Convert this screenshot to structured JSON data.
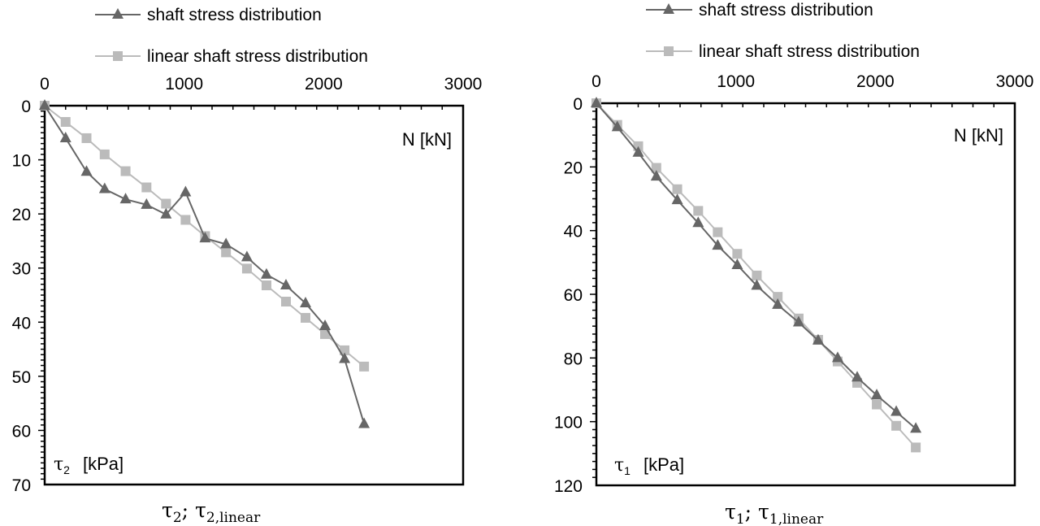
{
  "chart_data": [
    {
      "type": "line",
      "orientation": "inverted-y-depth",
      "x_axis_label": "N [kN]",
      "x_axis_position": "top",
      "y_unit_label": "[kPa]",
      "y_unit_symbol": "τ",
      "y_unit_sub": "2",
      "bottom_label": {
        "sym1": "τ",
        "sub1": "2",
        "sep": "; ",
        "sym2": "τ",
        "sub2": "2,linear"
      },
      "xlim": [
        0,
        3000
      ],
      "ylim": [
        0,
        70
      ],
      "x_ticks": [
        0,
        1000,
        2000,
        3000
      ],
      "x_tick_labels": [
        "0",
        "1000",
        "2000",
        "3000"
      ],
      "y_ticks": [
        0,
        10,
        20,
        30,
        40,
        50,
        60,
        70
      ],
      "y_tick_labels": [
        "0",
        "10",
        "20",
        "30",
        "40",
        "50",
        "60",
        "70"
      ],
      "legend_position": "top-left",
      "series": [
        {
          "name": "shaft stress distribution",
          "color": "#666666",
          "marker": "triangle",
          "x": [
            0,
            150,
            300,
            430,
            580,
            730,
            870,
            1010,
            1150,
            1300,
            1450,
            1590,
            1730,
            1870,
            2010,
            2150,
            2290
          ],
          "y": [
            0,
            6,
            12.2,
            15.4,
            17.3,
            18.3,
            20.1,
            16,
            24.5,
            25.6,
            28,
            31.2,
            33.2,
            36.5,
            40.7,
            46.8,
            58.8
          ]
        },
        {
          "name": "linear shaft stress distribution",
          "color": "#bbbbbb",
          "marker": "square",
          "x": [
            0,
            150,
            300,
            430,
            580,
            730,
            870,
            1010,
            1150,
            1300,
            1450,
            1590,
            1730,
            1870,
            2010,
            2150,
            2290
          ],
          "y": [
            0,
            3,
            6,
            9,
            12.1,
            15.1,
            18.1,
            21.1,
            24.1,
            27.1,
            30.1,
            33.2,
            36.2,
            39.2,
            42.2,
            45.2,
            48.2
          ]
        }
      ]
    },
    {
      "type": "line",
      "orientation": "inverted-y-depth",
      "x_axis_label": "N [kN]",
      "x_axis_position": "top",
      "y_unit_label": "[kPa]",
      "y_unit_symbol": "τ",
      "y_unit_sub": "1",
      "bottom_label": {
        "sym1": "τ",
        "sub1": "1",
        "sep": "; ",
        "sym2": "τ",
        "sub2": "1,linear"
      },
      "xlim": [
        0,
        3000
      ],
      "ylim": [
        0,
        120
      ],
      "x_ticks": [
        0,
        1000,
        2000,
        3000
      ],
      "x_tick_labels": [
        "0",
        "1000",
        "2000",
        "3000"
      ],
      "y_ticks": [
        0,
        20,
        40,
        60,
        80,
        100,
        120
      ],
      "y_tick_labels": [
        "0",
        "20",
        "40",
        "60",
        "80",
        "100",
        "120"
      ],
      "legend_position": "top-left",
      "series": [
        {
          "name": "shaft stress distribution",
          "color": "#666666",
          "marker": "triangle",
          "x": [
            0,
            150,
            300,
            430,
            580,
            730,
            870,
            1010,
            1150,
            1300,
            1450,
            1590,
            1730,
            1870,
            2010,
            2150,
            2290
          ],
          "y": [
            0,
            7.5,
            15.5,
            23,
            30.4,
            37.6,
            44.7,
            50.8,
            57.3,
            63.3,
            68.8,
            74.5,
            80,
            86.1,
            91.7,
            96.9,
            102.2
          ]
        },
        {
          "name": "linear shaft stress distribution",
          "color": "#bbbbbb",
          "marker": "square",
          "x": [
            0,
            150,
            300,
            430,
            580,
            730,
            870,
            1010,
            1150,
            1300,
            1450,
            1590,
            1730,
            1870,
            2010,
            2150,
            2290
          ],
          "y": [
            0,
            6.8,
            13.5,
            20.3,
            27,
            33.8,
            40.5,
            47.3,
            54.1,
            60.8,
            67.6,
            74.3,
            81.1,
            87.8,
            94.6,
            101.3,
            108.1
          ]
        }
      ]
    }
  ]
}
